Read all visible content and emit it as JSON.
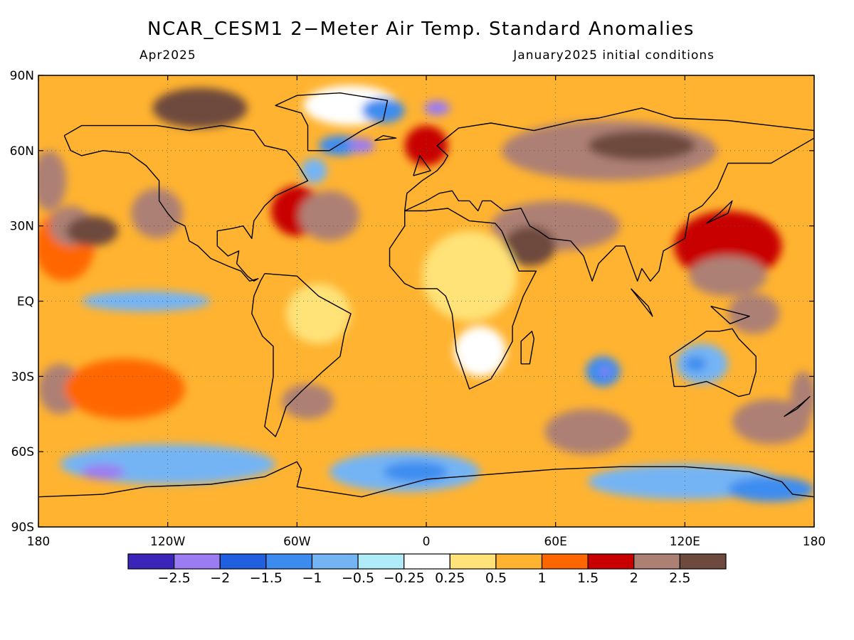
{
  "title": "NCAR_CESM1 2−Meter Air Temp. Standard Anomalies",
  "subtitle_left": "Apr2025",
  "subtitle_right": "January2025 initial conditions",
  "map": {
    "projection": "equirectangular",
    "lon_range": [
      -180,
      180
    ],
    "lat_range": [
      -90,
      90
    ],
    "gridlines": "dotted",
    "lon_ticks": [
      {
        "lon": -180,
        "label": "180"
      },
      {
        "lon": -120,
        "label": "120W"
      },
      {
        "lon": -60,
        "label": "60W"
      },
      {
        "lon": 0,
        "label": "0"
      },
      {
        "lon": 60,
        "label": "60E"
      },
      {
        "lon": 120,
        "label": "120E"
      },
      {
        "lon": 180,
        "label": "180"
      }
    ],
    "lat_ticks": [
      {
        "lat": 90,
        "label": "90N"
      },
      {
        "lat": 60,
        "label": "60N"
      },
      {
        "lat": 30,
        "label": "30N"
      },
      {
        "lat": 0,
        "label": "EQ"
      },
      {
        "lat": -30,
        "label": "30S"
      },
      {
        "lat": -60,
        "label": "60S"
      },
      {
        "lat": -90,
        "label": "90S"
      }
    ]
  },
  "colorbar": {
    "colors": [
      "#3b24b8",
      "#9b7cf2",
      "#1f5fe0",
      "#3c8cf0",
      "#74b4f4",
      "#b0ecf8",
      "#ffffff",
      "#ffe278",
      "#ffb330",
      "#ff6600",
      "#c80000",
      "#ad8074",
      "#6e4a3e"
    ],
    "labels": [
      "−2.5",
      "−2",
      "−1.5",
      "−1",
      "−0.5",
      "−0.25",
      "0.25",
      "0.5",
      "1",
      "1.5",
      "2",
      "2.5"
    ]
  },
  "anomaly_regions": [
    {
      "lon": -168,
      "lat": 22,
      "rx": 14,
      "ry": 14,
      "color": "#ff6600"
    },
    {
      "lon": -165,
      "lat": 30,
      "rx": 10,
      "ry": 8,
      "color": "#ad8074"
    },
    {
      "lon": -155,
      "lat": 28,
      "rx": 12,
      "ry": 6,
      "color": "#6e4a3e"
    },
    {
      "lon": -175,
      "lat": 48,
      "rx": 8,
      "ry": 12,
      "color": "#ad8074"
    },
    {
      "lon": -125,
      "lat": 35,
      "rx": 12,
      "ry": 10,
      "color": "#ad8074"
    },
    {
      "lon": -105,
      "lat": 77,
      "rx": 22,
      "ry": 8,
      "color": "#6e4a3e"
    },
    {
      "lon": -60,
      "lat": 36,
      "rx": 12,
      "ry": 10,
      "color": "#c80000"
    },
    {
      "lon": -45,
      "lat": 34,
      "rx": 14,
      "ry": 10,
      "color": "#ad8074"
    },
    {
      "lon": -35,
      "lat": 78,
      "rx": 22,
      "ry": 8,
      "color": "#ffffff"
    },
    {
      "lon": -20,
      "lat": 76,
      "rx": 10,
      "ry": 5,
      "color": "#3c8cf0"
    },
    {
      "lon": -40,
      "lat": 62,
      "rx": 10,
      "ry": 4,
      "color": "#3c8cf0"
    },
    {
      "lon": -30,
      "lat": 62,
      "rx": 6,
      "ry": 3,
      "color": "#9b7cf2"
    },
    {
      "lon": -52,
      "lat": 52,
      "rx": 6,
      "ry": 5,
      "color": "#74b4f4"
    },
    {
      "lon": 0,
      "lat": 62,
      "rx": 10,
      "ry": 8,
      "color": "#c80000"
    },
    {
      "lon": 85,
      "lat": 60,
      "rx": 50,
      "ry": 12,
      "color": "#ad8074"
    },
    {
      "lon": 100,
      "lat": 62,
      "rx": 25,
      "ry": 6,
      "color": "#6e4a3e"
    },
    {
      "lon": 60,
      "lat": 30,
      "rx": 30,
      "ry": 10,
      "color": "#ad8074"
    },
    {
      "lon": 48,
      "lat": 22,
      "rx": 12,
      "ry": 8,
      "color": "#6e4a3e"
    },
    {
      "lon": 140,
      "lat": 22,
      "rx": 25,
      "ry": 14,
      "color": "#c80000"
    },
    {
      "lon": 140,
      "lat": 10,
      "rx": 18,
      "ry": 8,
      "color": "#ad8074"
    },
    {
      "lon": 20,
      "lat": 10,
      "rx": 22,
      "ry": 18,
      "color": "#ffe278"
    },
    {
      "lon": 25,
      "lat": -20,
      "rx": 12,
      "ry": 10,
      "color": "#ffffff"
    },
    {
      "lon": -50,
      "lat": -5,
      "rx": 15,
      "ry": 12,
      "color": "#ffe278"
    },
    {
      "lon": -130,
      "lat": 0,
      "rx": 30,
      "ry": 4,
      "color": "#74b4f4"
    },
    {
      "lon": -170,
      "lat": -35,
      "rx": 10,
      "ry": 10,
      "color": "#ad8074"
    },
    {
      "lon": -140,
      "lat": -35,
      "rx": 28,
      "ry": 12,
      "color": "#ff6600"
    },
    {
      "lon": -55,
      "lat": -40,
      "rx": 12,
      "ry": 7,
      "color": "#ad8074"
    },
    {
      "lon": 75,
      "lat": -52,
      "rx": 20,
      "ry": 9,
      "color": "#ad8074"
    },
    {
      "lon": 160,
      "lat": -48,
      "rx": 18,
      "ry": 9,
      "color": "#ad8074"
    },
    {
      "lon": 128,
      "lat": -25,
      "rx": 12,
      "ry": 8,
      "color": "#74b4f4"
    },
    {
      "lon": 125,
      "lat": -25,
      "rx": 5,
      "ry": 3,
      "color": "#3c8cf0"
    },
    {
      "lon": 82,
      "lat": -28,
      "rx": 8,
      "ry": 6,
      "color": "#3c8cf0"
    },
    {
      "lon": 83,
      "lat": -28,
      "rx": 2,
      "ry": 1.5,
      "color": "#9b7cf2"
    },
    {
      "lon": 152,
      "lat": -5,
      "rx": 12,
      "ry": 8,
      "color": "#ad8074"
    },
    {
      "lon": 175,
      "lat": -38,
      "rx": 6,
      "ry": 10,
      "color": "#ad8074"
    },
    {
      "lon": -120,
      "lat": -65,
      "rx": 50,
      "ry": 8,
      "color": "#74b4f4"
    },
    {
      "lon": -150,
      "lat": -68,
      "rx": 10,
      "ry": 3,
      "color": "#9b7cf2"
    },
    {
      "lon": -10,
      "lat": -68,
      "rx": 35,
      "ry": 8,
      "color": "#74b4f4"
    },
    {
      "lon": -5,
      "lat": -68,
      "rx": 15,
      "ry": 4,
      "color": "#3c8cf0"
    },
    {
      "lon": 120,
      "lat": -72,
      "rx": 45,
      "ry": 7,
      "color": "#74b4f4"
    },
    {
      "lon": 160,
      "lat": -75,
      "rx": 20,
      "ry": 5,
      "color": "#3c8cf0"
    },
    {
      "lon": 5,
      "lat": 77,
      "rx": 6,
      "ry": 3,
      "color": "#9b7cf2"
    }
  ],
  "coastlines": [
    [
      [
        -168,
        66
      ],
      [
        -160,
        70
      ],
      [
        -140,
        70
      ],
      [
        -125,
        70
      ],
      [
        -110,
        68
      ],
      [
        -95,
        70
      ],
      [
        -80,
        68
      ],
      [
        -75,
        62
      ],
      [
        -65,
        60
      ],
      [
        -60,
        55
      ],
      [
        -55,
        48
      ],
      [
        -65,
        44
      ],
      [
        -70,
        42
      ],
      [
        -75,
        38
      ],
      [
        -80,
        32
      ],
      [
        -81,
        25
      ],
      [
        -85,
        30
      ],
      [
        -90,
        29
      ],
      [
        -97,
        28
      ],
      [
        -97,
        22
      ],
      [
        -92,
        18
      ],
      [
        -87,
        20
      ],
      [
        -88,
        15
      ],
      [
        -83,
        10
      ],
      [
        -80,
        8
      ],
      [
        -78,
        9
      ],
      [
        -82,
        8
      ],
      [
        -86,
        12
      ],
      [
        -92,
        14
      ],
      [
        -100,
        17
      ],
      [
        -106,
        22
      ],
      [
        -110,
        24
      ],
      [
        -112,
        30
      ],
      [
        -117,
        32
      ],
      [
        -120,
        35
      ],
      [
        -124,
        40
      ],
      [
        -124,
        48
      ],
      [
        -130,
        54
      ],
      [
        -138,
        59
      ],
      [
        -150,
        60
      ],
      [
        -160,
        58
      ],
      [
        -165,
        60
      ],
      [
        -168,
        66
      ]
    ],
    [
      [
        -75,
        11
      ],
      [
        -60,
        10
      ],
      [
        -50,
        2
      ],
      [
        -35,
        -5
      ],
      [
        -38,
        -13
      ],
      [
        -40,
        -22
      ],
      [
        -48,
        -28
      ],
      [
        -58,
        -36
      ],
      [
        -65,
        -42
      ],
      [
        -68,
        -50
      ],
      [
        -70,
        -54
      ],
      [
        -75,
        -50
      ],
      [
        -73,
        -40
      ],
      [
        -71,
        -30
      ],
      [
        -71,
        -18
      ],
      [
        -76,
        -14
      ],
      [
        -81,
        -5
      ],
      [
        -80,
        2
      ],
      [
        -77,
        8
      ],
      [
        -75,
        11
      ]
    ],
    [
      [
        -10,
        36
      ],
      [
        0,
        36
      ],
      [
        10,
        37
      ],
      [
        20,
        32
      ],
      [
        32,
        31
      ],
      [
        35,
        28
      ],
      [
        43,
        12
      ],
      [
        51,
        12
      ],
      [
        45,
        2
      ],
      [
        40,
        -10
      ],
      [
        40,
        -16
      ],
      [
        35,
        -24
      ],
      [
        30,
        -31
      ],
      [
        20,
        -35
      ],
      [
        18,
        -30
      ],
      [
        14,
        -20
      ],
      [
        12,
        -5
      ],
      [
        9,
        2
      ],
      [
        5,
        5
      ],
      [
        -5,
        5
      ],
      [
        -10,
        7
      ],
      [
        -17,
        14
      ],
      [
        -17,
        21
      ],
      [
        -10,
        30
      ],
      [
        -10,
        36
      ]
    ],
    [
      [
        -10,
        36
      ],
      [
        -9,
        43
      ],
      [
        -2,
        48
      ],
      [
        5,
        52
      ],
      [
        8,
        55
      ],
      [
        10,
        58
      ],
      [
        5,
        62
      ],
      [
        15,
        69
      ],
      [
        30,
        71
      ],
      [
        50,
        68
      ],
      [
        70,
        72
      ],
      [
        80,
        73
      ],
      [
        100,
        77
      ],
      [
        115,
        73
      ],
      [
        140,
        72
      ],
      [
        160,
        70
      ],
      [
        180,
        68
      ],
      [
        180,
        65
      ],
      [
        170,
        60
      ],
      [
        160,
        55
      ],
      [
        140,
        55
      ],
      [
        135,
        45
      ],
      [
        128,
        38
      ],
      [
        122,
        35
      ],
      [
        120,
        25
      ],
      [
        110,
        20
      ],
      [
        108,
        12
      ],
      [
        104,
        8
      ],
      [
        100,
        13
      ],
      [
        98,
        8
      ],
      [
        92,
        22
      ],
      [
        88,
        22
      ],
      [
        80,
        15
      ],
      [
        77,
        8
      ],
      [
        73,
        18
      ],
      [
        67,
        24
      ],
      [
        57,
        25
      ],
      [
        52,
        28
      ],
      [
        48,
        30
      ],
      [
        44,
        37
      ],
      [
        36,
        36
      ],
      [
        30,
        40
      ],
      [
        26,
        40
      ],
      [
        24,
        36
      ],
      [
        20,
        40
      ],
      [
        15,
        40
      ],
      [
        12,
        44
      ],
      [
        6,
        43
      ],
      [
        0,
        40
      ],
      [
        -10,
        36
      ]
    ],
    [
      [
        113,
        -22
      ],
      [
        115,
        -34
      ],
      [
        120,
        -34
      ],
      [
        130,
        -32
      ],
      [
        138,
        -35
      ],
      [
        145,
        -38
      ],
      [
        150,
        -37
      ],
      [
        153,
        -28
      ],
      [
        153,
        -22
      ],
      [
        145,
        -15
      ],
      [
        142,
        -11
      ],
      [
        136,
        -12
      ],
      [
        130,
        -12
      ],
      [
        125,
        -15
      ],
      [
        113,
        -22
      ]
    ],
    [
      [
        -55,
        60
      ],
      [
        -45,
        60
      ],
      [
        -30,
        68
      ],
      [
        -20,
        72
      ],
      [
        -18,
        80
      ],
      [
        -40,
        83
      ],
      [
        -60,
        82
      ],
      [
        -70,
        78
      ],
      [
        -58,
        75
      ],
      [
        -55,
        70
      ],
      [
        -55,
        60
      ]
    ],
    [
      [
        -180,
        -78
      ],
      [
        -150,
        -77
      ],
      [
        -130,
        -74
      ],
      [
        -100,
        -73
      ],
      [
        -75,
        -70
      ],
      [
        -60,
        -64
      ],
      [
        -58,
        -67
      ],
      [
        -60,
        -74
      ],
      [
        -30,
        -78
      ],
      [
        0,
        -71
      ],
      [
        30,
        -69
      ],
      [
        60,
        -67
      ],
      [
        90,
        -66
      ],
      [
        120,
        -66
      ],
      [
        150,
        -68
      ],
      [
        165,
        -72
      ],
      [
        170,
        -77
      ],
      [
        180,
        -78
      ]
    ],
    [
      [
        44,
        -25
      ],
      [
        48,
        -25
      ],
      [
        50,
        -15
      ],
      [
        49,
        -12
      ],
      [
        44,
        -16
      ],
      [
        44,
        -25
      ]
    ],
    [
      [
        95,
        5
      ],
      [
        105,
        -6
      ],
      [
        103,
        -2
      ],
      [
        95,
        5
      ]
    ],
    [
      [
        -24,
        64
      ],
      [
        -14,
        65
      ],
      [
        -20,
        66
      ],
      [
        -24,
        64
      ]
    ],
    [
      [
        -6,
        50
      ],
      [
        2,
        52
      ],
      [
        -3,
        58
      ],
      [
        -6,
        50
      ]
    ],
    [
      [
        130,
        31
      ],
      [
        140,
        35
      ],
      [
        142,
        40
      ],
      [
        136,
        35
      ],
      [
        130,
        31
      ]
    ],
    [
      [
        166,
        -46
      ],
      [
        174,
        -41
      ],
      [
        178,
        -38
      ],
      [
        172,
        -43
      ],
      [
        166,
        -46
      ]
    ],
    [
      [
        132,
        -2
      ],
      [
        150,
        -6
      ],
      [
        141,
        -9
      ],
      [
        132,
        -2
      ]
    ]
  ]
}
